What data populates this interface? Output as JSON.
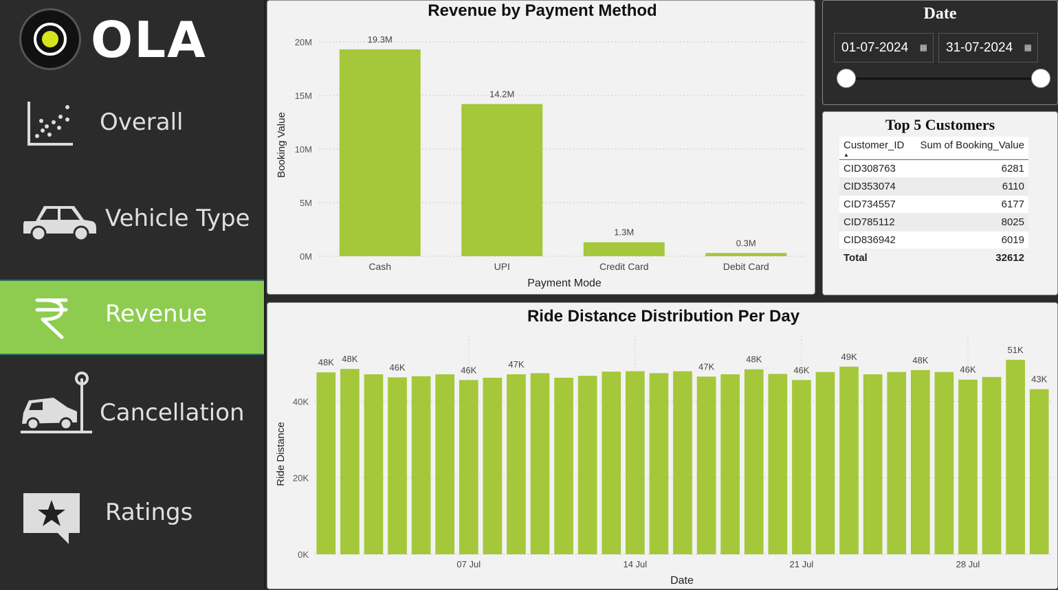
{
  "brand": {
    "name": "OLA"
  },
  "nav": [
    {
      "label": "Overall",
      "icon": "scatter-chart-icon",
      "active": false
    },
    {
      "label": "Vehicle Type",
      "icon": "car-icon",
      "active": false
    },
    {
      "label": "Revenue",
      "icon": "rupee-icon",
      "active": true
    },
    {
      "label": "Cancellation",
      "icon": "car-crash-icon",
      "active": false
    },
    {
      "label": "Ratings",
      "icon": "star-speech-bubble-icon",
      "active": false
    }
  ],
  "date_filter": {
    "title": "Date",
    "start": "01-07-2024",
    "end": "31-07-2024",
    "calendar_icon": "calendar-icon",
    "range_start_fraction": 0,
    "range_end_fraction": 1
  },
  "top_customers": {
    "title": "Top 5 Customers",
    "columns": [
      "Customer_ID",
      "Sum of Booking_Value"
    ],
    "sort_icon": "sort-ascending-icon",
    "rows": [
      [
        "CID308763",
        "6281"
      ],
      [
        "CID353074",
        "6110"
      ],
      [
        "CID734557",
        "6177"
      ],
      [
        "CID785112",
        "8025"
      ],
      [
        "CID836942",
        "6019"
      ]
    ],
    "total": [
      "Total",
      "32612"
    ]
  },
  "colors": {
    "bar": "#a5c73a",
    "accent_active": "#8dcc4f",
    "panel_bg": "#f2f2f2",
    "sidebar_bg": "#2b2b2b"
  },
  "chart_data": [
    {
      "type": "bar",
      "title": "Revenue by Payment Method",
      "xlabel": "Payment Mode",
      "ylabel": "Booking Value",
      "categories": [
        "Cash",
        "UPI",
        "Credit Card",
        "Debit Card"
      ],
      "values": [
        19.3,
        14.2,
        1.3,
        0.3
      ],
      "data_labels": [
        "19.3M",
        "14.2M",
        "1.3M",
        "0.3M"
      ],
      "yticks": [
        "0M",
        "5M",
        "10M",
        "15M",
        "20M"
      ],
      "ylim": [
        0,
        20
      ],
      "grid": true
    },
    {
      "type": "bar",
      "title": "Ride Distance Distribution Per Day",
      "xlabel": "Date",
      "ylabel": "Ride Distance",
      "categories": [
        "1 Jul",
        "2 Jul",
        "3 Jul",
        "4 Jul",
        "5 Jul",
        "6 Jul",
        "7 Jul",
        "8 Jul",
        "9 Jul",
        "10 Jul",
        "11 Jul",
        "12 Jul",
        "13 Jul",
        "14 Jul",
        "15 Jul",
        "16 Jul",
        "17 Jul",
        "18 Jul",
        "19 Jul",
        "20 Jul",
        "21 Jul",
        "22 Jul",
        "23 Jul",
        "24 Jul",
        "25 Jul",
        "26 Jul",
        "27 Jul",
        "28 Jul",
        "29 Jul",
        "30 Jul",
        "31 Jul"
      ],
      "values": [
        47.6,
        48.5,
        47.1,
        46.3,
        46.6,
        47.1,
        45.6,
        46.2,
        47.1,
        47.4,
        46.2,
        46.7,
        47.8,
        47.9,
        47.4,
        47.9,
        46.5,
        47.1,
        48.4,
        47.2,
        45.6,
        47.7,
        49.1,
        47.1,
        47.7,
        48.2,
        47.7,
        45.7,
        46.4,
        50.9,
        43.2
      ],
      "data_labels": [
        "48K",
        "48K",
        "",
        "46K",
        "",
        "",
        "46K",
        "",
        "47K",
        "",
        "",
        "",
        "",
        "",
        "",
        "",
        "47K",
        "",
        "48K",
        "",
        "46K",
        "",
        "49K",
        "",
        "",
        "48K",
        "",
        "46K",
        "",
        "51K",
        "43K"
      ],
      "xticks": [
        "07 Jul",
        "14 Jul",
        "21 Jul",
        "28 Jul"
      ],
      "xtick_categories": [
        "7 Jul",
        "14 Jul",
        "21 Jul",
        "28 Jul"
      ],
      "yticks": [
        "0K",
        "20K",
        "40K"
      ],
      "ylim": [
        0,
        55
      ],
      "grid": true
    }
  ]
}
